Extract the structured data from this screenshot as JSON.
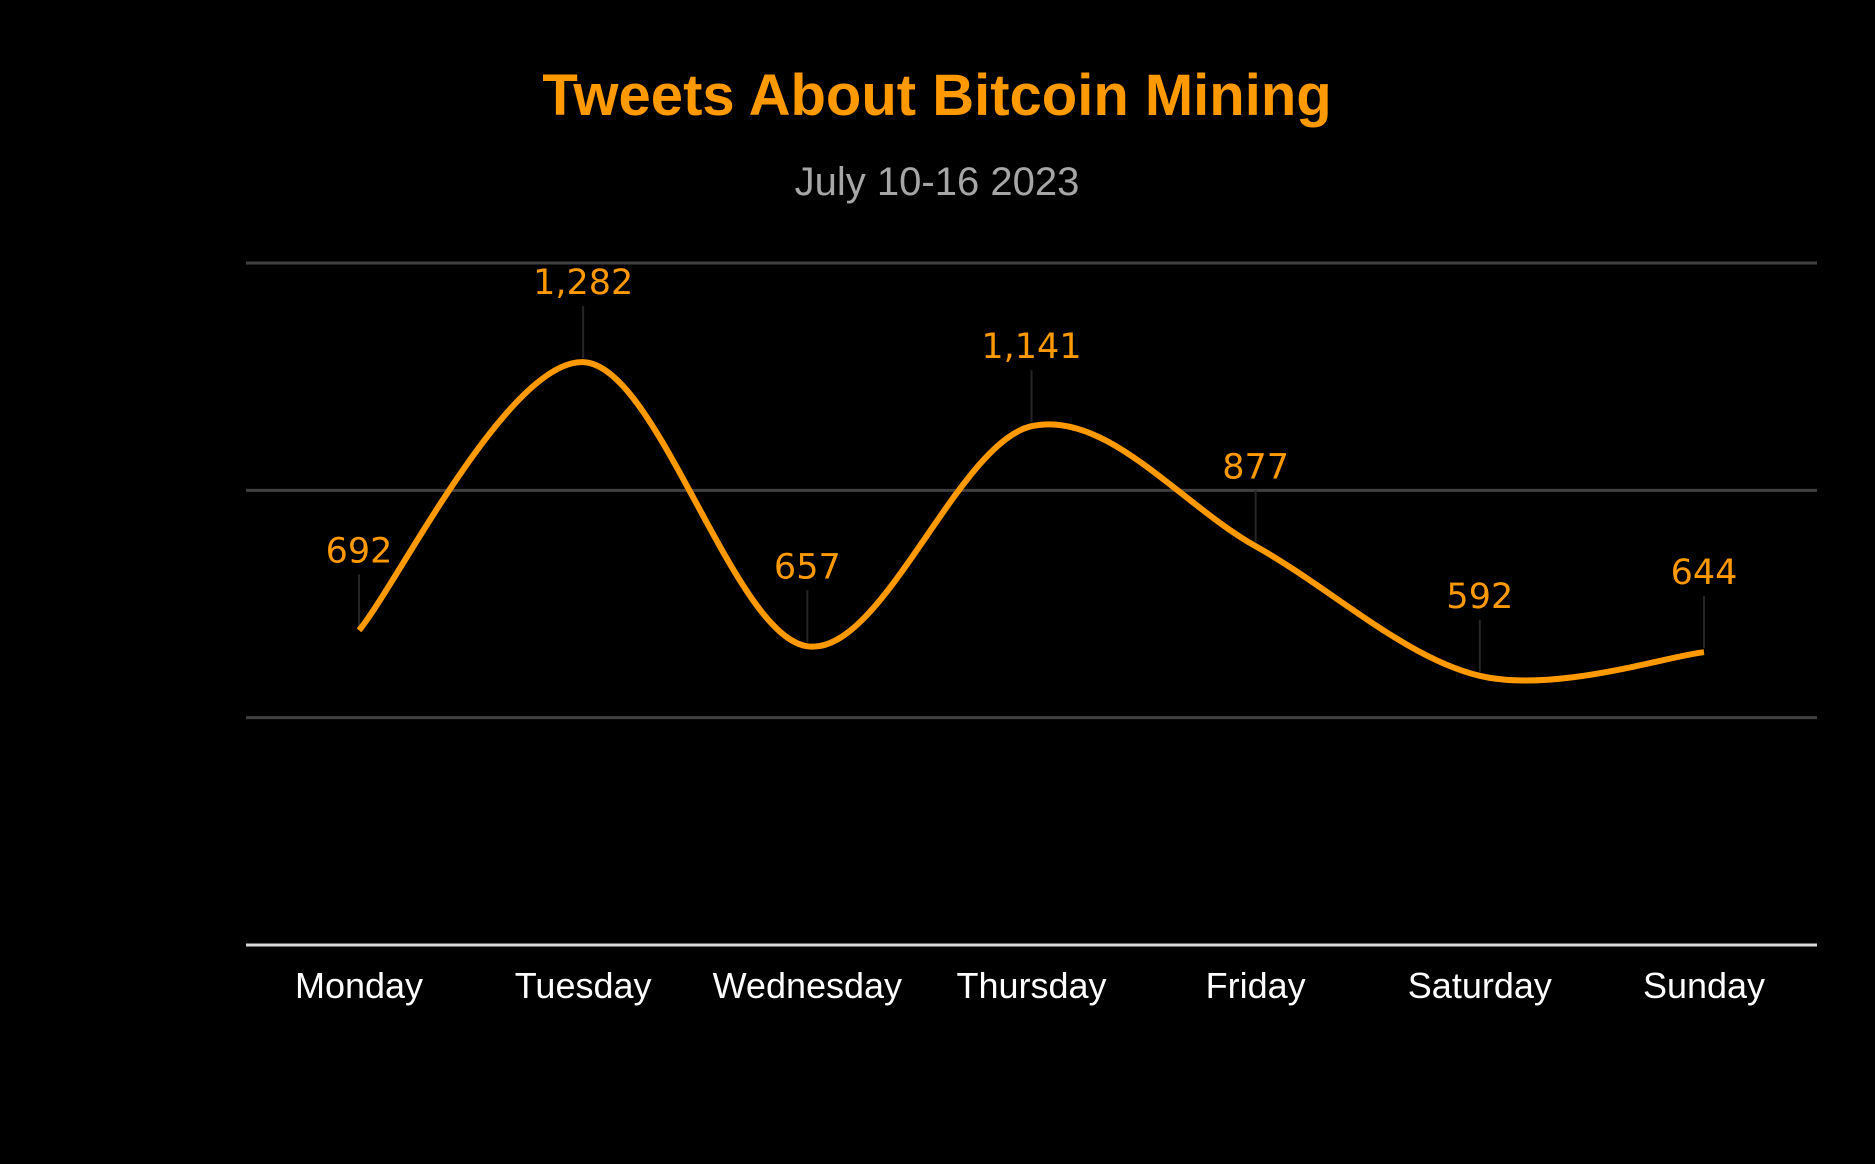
{
  "chart_data": {
    "type": "line",
    "title": "Tweets About Bitcoin Mining",
    "subtitle": "July 10-16 2023",
    "xlabel": "",
    "ylabel": "",
    "categories": [
      "Monday",
      "Tuesday",
      "Wednesday",
      "Thursday",
      "Friday",
      "Saturday",
      "Sunday"
    ],
    "values": [
      692,
      1282,
      657,
      1141,
      877,
      592,
      644
    ],
    "data_labels": [
      "692",
      "1,282",
      "657",
      "1,141",
      "877",
      "592",
      "644"
    ],
    "ylim": [
      0,
      1500
    ],
    "y_gridlines": [
      500,
      1000,
      1500
    ],
    "y_tick_labels_shown": false,
    "grid": true,
    "smooth": true,
    "legend": "none",
    "colors": {
      "background": "#000000",
      "line": "#FF9900",
      "title": "#FF9900",
      "subtitle": "#A6A6A6",
      "data_labels": "#FF9900",
      "tick_labels": "#FFFFFF",
      "gridlines": "#404040",
      "baseline": "#D9D9D9",
      "leader_lines": "#262626"
    }
  }
}
